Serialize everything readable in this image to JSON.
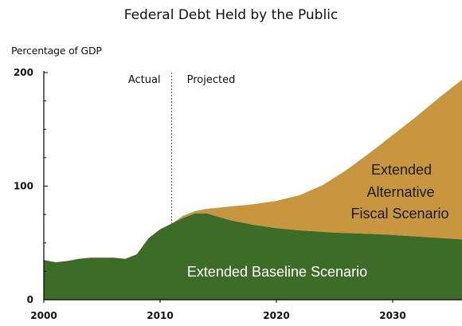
{
  "chart_data": {
    "type": "area",
    "title": "Federal Debt Held by the Public",
    "ylabel": "Percentage of GDP",
    "xlabel": "",
    "xlim": [
      2000,
      2036
    ],
    "ylim": [
      0,
      200
    ],
    "x_ticks": [
      "2000",
      "2010",
      "2020",
      "2030"
    ],
    "y_ticks": [
      "0",
      "100",
      "200"
    ],
    "divider_year": 2011,
    "divider_labels": {
      "left": "Actual",
      "right": "Projected"
    },
    "series": [
      {
        "name": "Extended Baseline Scenario",
        "label_lines": [
          "Extended Baseline Scenario"
        ],
        "color": "#3d6b28",
        "label_color": "#ffffff",
        "x": [
          2000,
          2001,
          2002,
          2003,
          2004,
          2005,
          2006,
          2007,
          2008,
          2009,
          2010,
          2011,
          2012,
          2013,
          2014,
          2015,
          2016,
          2018,
          2020,
          2022,
          2025,
          2028,
          2030,
          2033,
          2036
        ],
        "values": [
          35,
          33,
          34,
          36,
          37,
          37,
          37,
          36,
          40,
          54,
          62,
          67,
          72,
          76,
          76,
          73,
          70,
          66,
          63,
          61,
          59,
          58,
          57,
          55,
          53
        ]
      },
      {
        "name": "Extended Alternative Fiscal Scenario",
        "label_lines": [
          "Extended",
          "Alternative",
          "Fiscal Scenario"
        ],
        "color": "#c99640",
        "label_color": "#1a1a1a",
        "x": [
          2011,
          2012,
          2013,
          2014,
          2015,
          2016,
          2018,
          2020,
          2022,
          2024,
          2026,
          2028,
          2030,
          2032,
          2034,
          2036
        ],
        "values": [
          67,
          74,
          78,
          80,
          81,
          82,
          84,
          87,
          92,
          101,
          114,
          129,
          145,
          161,
          178,
          194
        ]
      }
    ]
  }
}
